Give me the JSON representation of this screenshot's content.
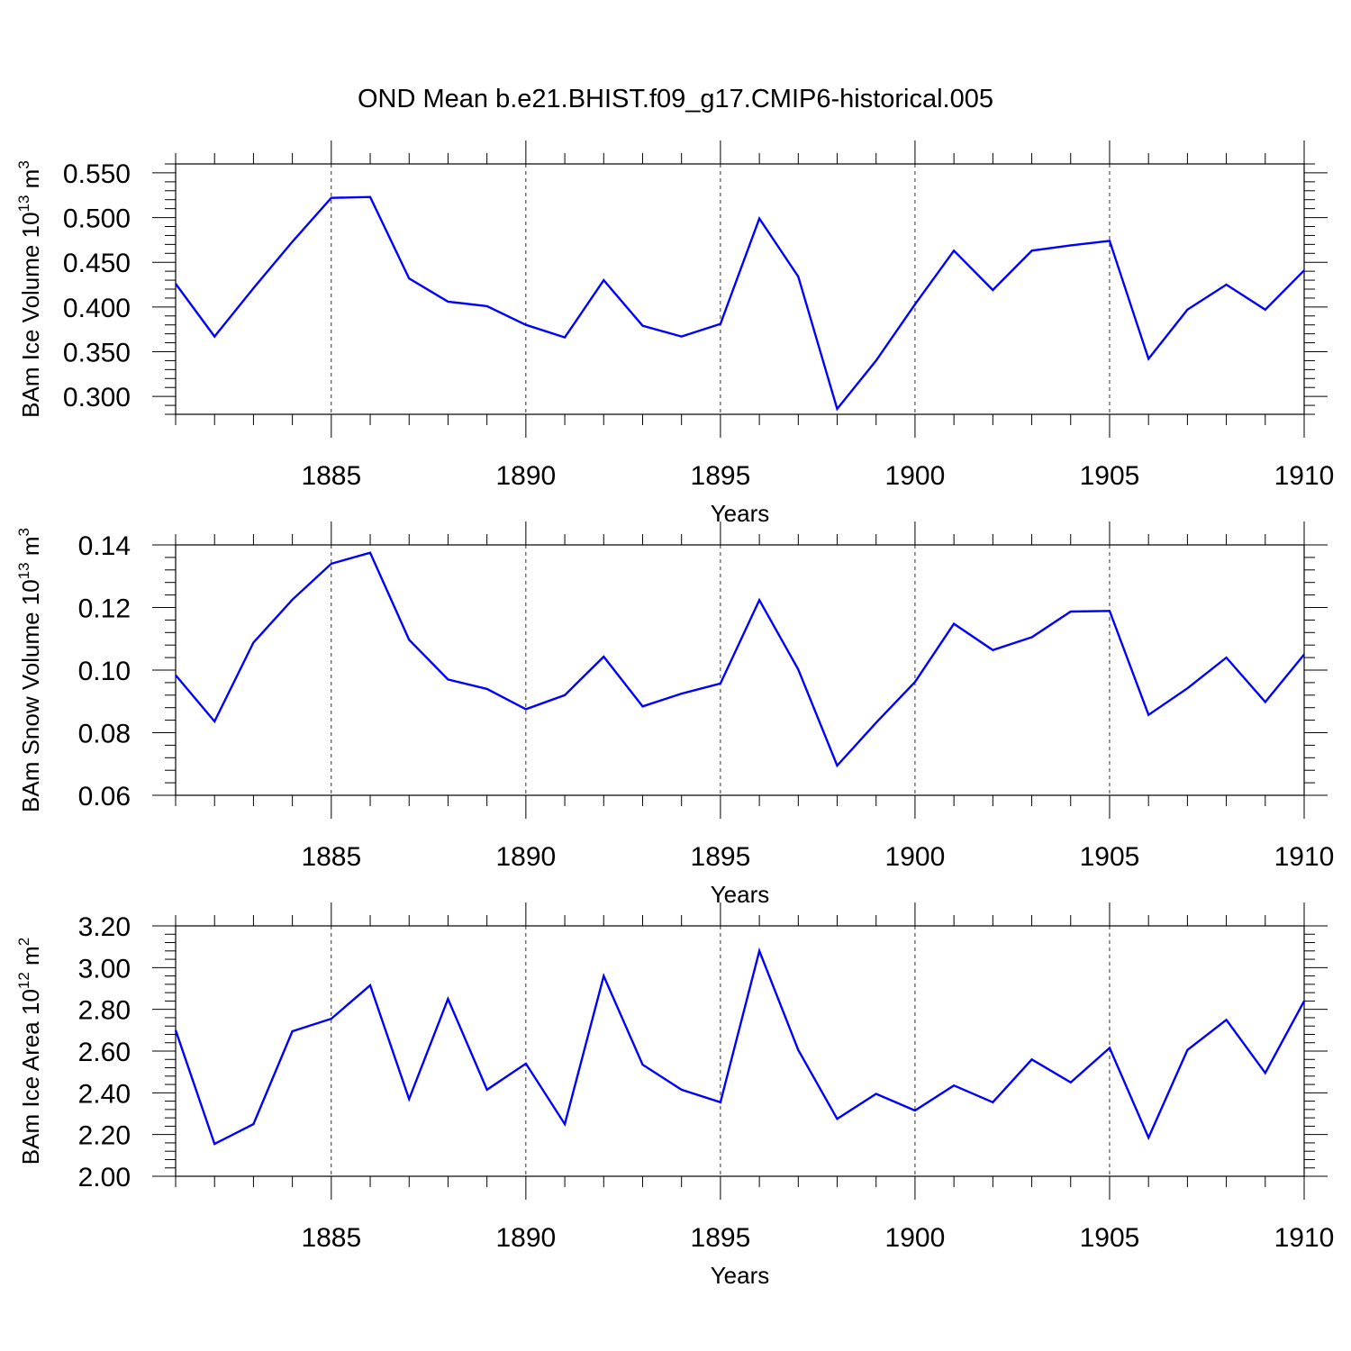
{
  "title": "OND Mean b.e21.BHIST.f09_g17.CMIP6-historical.005",
  "colors": {
    "line": "#0000ff",
    "axis": "#000000",
    "grid": "#000000"
  },
  "chart_data": [
    {
      "type": "line",
      "title": "",
      "ylabel": {
        "text": "BAm Ice Volume 10",
        "exponent": "13",
        "unit": " m",
        "unit_exponent": "3"
      },
      "xlabel": "Years",
      "xlim": [
        1881,
        1910
      ],
      "ylim": [
        0.28,
        0.56
      ],
      "yticks": [
        "0.300",
        "0.350",
        "0.400",
        "0.450",
        "0.500",
        "0.550"
      ],
      "xticks": [
        "1885",
        "1890",
        "1895",
        "1900",
        "1905",
        "1910"
      ],
      "series": [
        {
          "name": "BAm Ice Volume",
          "x": [
            1881,
            1882,
            1883,
            1884,
            1885,
            1886,
            1887,
            1888,
            1889,
            1890,
            1891,
            1892,
            1893,
            1894,
            1895,
            1896,
            1897,
            1898,
            1899,
            1900,
            1901,
            1902,
            1903,
            1904,
            1905,
            1906,
            1907,
            1908,
            1909,
            1910
          ],
          "y": [
            0.426,
            0.367,
            0.421,
            0.473,
            0.522,
            0.523,
            0.432,
            0.406,
            0.401,
            0.38,
            0.366,
            0.43,
            0.379,
            0.367,
            0.381,
            0.499,
            0.434,
            0.286,
            0.34,
            0.403,
            0.463,
            0.419,
            0.463,
            0.469,
            0.474,
            0.342,
            0.397,
            0.425,
            0.397,
            0.441
          ]
        }
      ]
    },
    {
      "type": "line",
      "title": "",
      "ylabel": {
        "text": "BAm Snow Volume 10",
        "exponent": "13",
        "unit": " m",
        "unit_exponent": "3"
      },
      "xlabel": "Years",
      "xlim": [
        1881,
        1910
      ],
      "ylim": [
        0.06,
        0.14
      ],
      "yticks": [
        "0.06",
        "0.08",
        "0.10",
        "0.12",
        "0.14"
      ],
      "xticks": [
        "1885",
        "1890",
        "1895",
        "1900",
        "1905",
        "1910"
      ],
      "series": [
        {
          "name": "BAm Snow Volume",
          "x": [
            1881,
            1882,
            1883,
            1884,
            1885,
            1886,
            1887,
            1888,
            1889,
            1890,
            1891,
            1892,
            1893,
            1894,
            1895,
            1896,
            1897,
            1898,
            1899,
            1900,
            1901,
            1902,
            1903,
            1904,
            1905,
            1906,
            1907,
            1908,
            1909,
            1910
          ],
          "y": [
            0.0984,
            0.0836,
            0.1088,
            0.1225,
            0.134,
            0.1375,
            0.1097,
            0.097,
            0.094,
            0.0875,
            0.092,
            0.1043,
            0.0884,
            0.0925,
            0.0957,
            0.1224,
            0.1002,
            0.0695,
            0.0832,
            0.0962,
            0.1148,
            0.1064,
            0.1105,
            0.1187,
            0.1189,
            0.0857,
            0.0942,
            0.104,
            0.0898,
            0.105
          ]
        }
      ]
    },
    {
      "type": "line",
      "title": "",
      "ylabel": {
        "text": "BAm Ice Area 10",
        "exponent": "12",
        "unit": " m",
        "unit_exponent": "2"
      },
      "xlabel": "Years",
      "xlim": [
        1881,
        1910
      ],
      "ylim": [
        2.0,
        3.2
      ],
      "yticks": [
        "2.00",
        "2.20",
        "2.40",
        "2.60",
        "2.80",
        "3.00",
        "3.20"
      ],
      "xticks": [
        "1885",
        "1890",
        "1895",
        "1900",
        "1905",
        "1910"
      ],
      "series": [
        {
          "name": "BAm Ice Area",
          "x": [
            1881,
            1882,
            1883,
            1884,
            1885,
            1886,
            1887,
            1888,
            1889,
            1890,
            1891,
            1892,
            1893,
            1894,
            1895,
            1896,
            1897,
            1898,
            1899,
            1900,
            1901,
            1902,
            1903,
            1904,
            1905,
            1906,
            1907,
            1908,
            1909,
            1910
          ],
          "y": [
            2.7,
            2.155,
            2.25,
            2.695,
            2.755,
            2.915,
            2.37,
            2.85,
            2.415,
            2.54,
            2.25,
            2.96,
            2.535,
            2.415,
            2.355,
            3.08,
            2.605,
            2.275,
            2.395,
            2.315,
            2.435,
            2.355,
            2.56,
            2.45,
            2.615,
            2.185,
            2.605,
            2.75,
            2.495,
            2.84
          ]
        }
      ]
    }
  ]
}
